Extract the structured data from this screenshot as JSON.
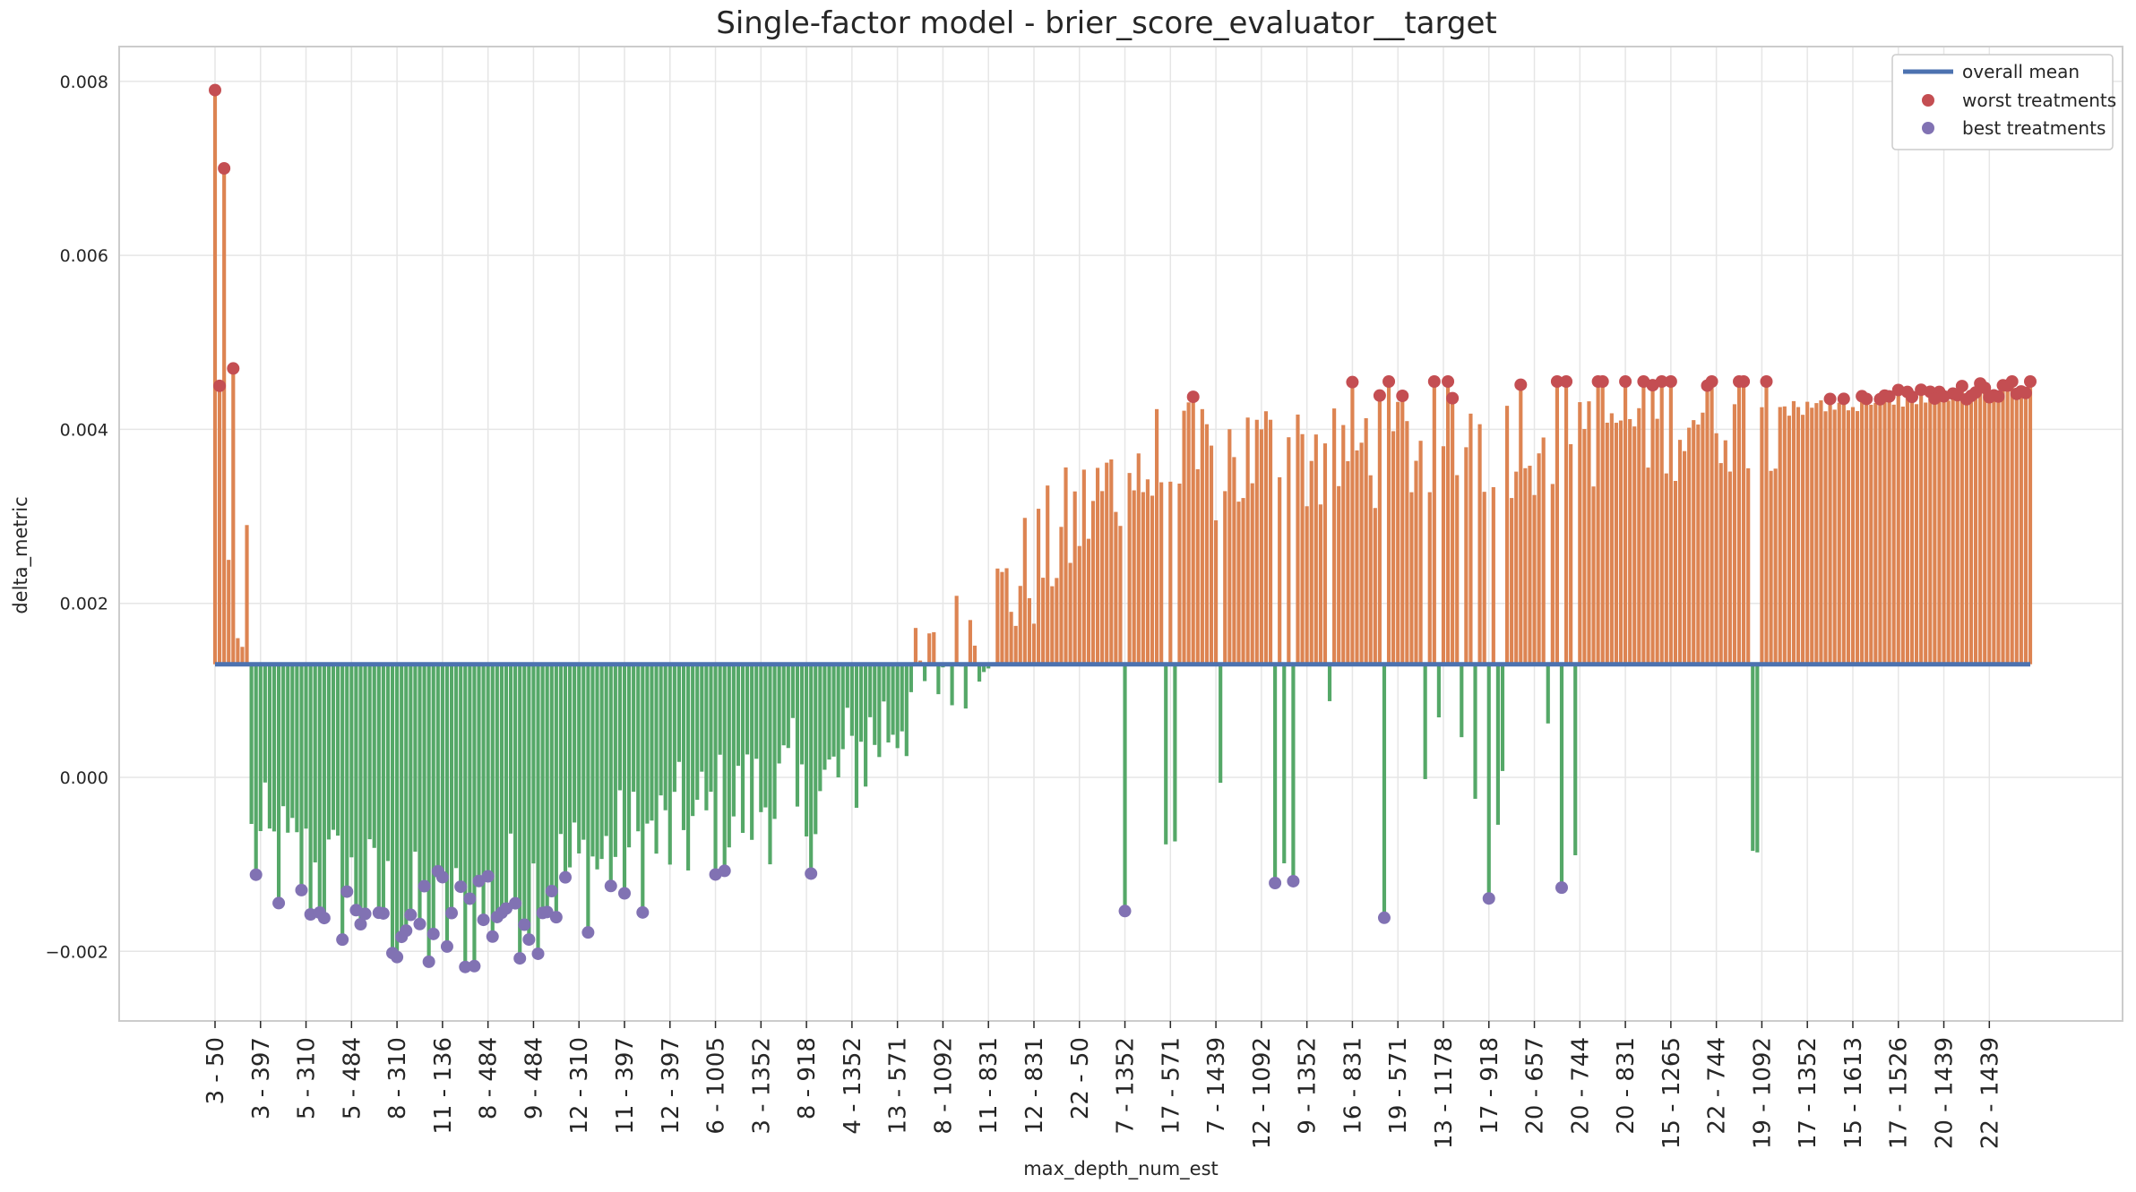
{
  "chart_data": {
    "type": "bar",
    "title": "Single-factor model - brier_score_evaluator__target",
    "xlabel": "max_depth_num_est",
    "ylabel": "delta_metric",
    "ylim": [
      -0.0028,
      0.0084
    ],
    "yticks": [
      -0.002,
      0.0,
      0.002,
      0.004,
      0.006,
      0.008
    ],
    "ytick_labels": [
      "−0.002",
      "0.000",
      "0.002",
      "0.004",
      "0.006",
      "0.008"
    ],
    "overall_mean": 0.0013,
    "num_bars": 400,
    "xtick_labels": [
      "3 - 50",
      "3 - 397",
      "5 - 310",
      "5 - 484",
      "8 - 310",
      "11 - 136",
      "8 - 484",
      "9 - 484",
      "12 - 310",
      "11 - 397",
      "12 - 397",
      "6 - 1005",
      "3 - 1352",
      "8 - 918",
      "4 - 1352",
      "13 - 571",
      "8 - 1092",
      "11 - 831",
      "12 - 831",
      "22 - 50",
      "7 - 1352",
      "17 - 571",
      "7 - 1439",
      "12 - 1092",
      "9 - 1352",
      "16 - 831",
      "19 - 571",
      "13 - 1178",
      "17 - 918",
      "20 - 657",
      "20 - 744",
      "20 - 831",
      "15 - 1265",
      "22 - 744",
      "19 - 1092",
      "17 - 1352",
      "15 - 1613",
      "17 - 1526",
      "20 - 1439",
      "22 - 1439"
    ],
    "grid": true,
    "legend": {
      "position": "top-right",
      "entries": [
        "overall mean",
        "worst treatments",
        "best treatments"
      ]
    },
    "colors": {
      "above_mean": "#dd8452",
      "below_mean": "#55a868",
      "mean_line": "#4c72b0",
      "worst": "#c44e52",
      "best": "#8172b3"
    }
  }
}
